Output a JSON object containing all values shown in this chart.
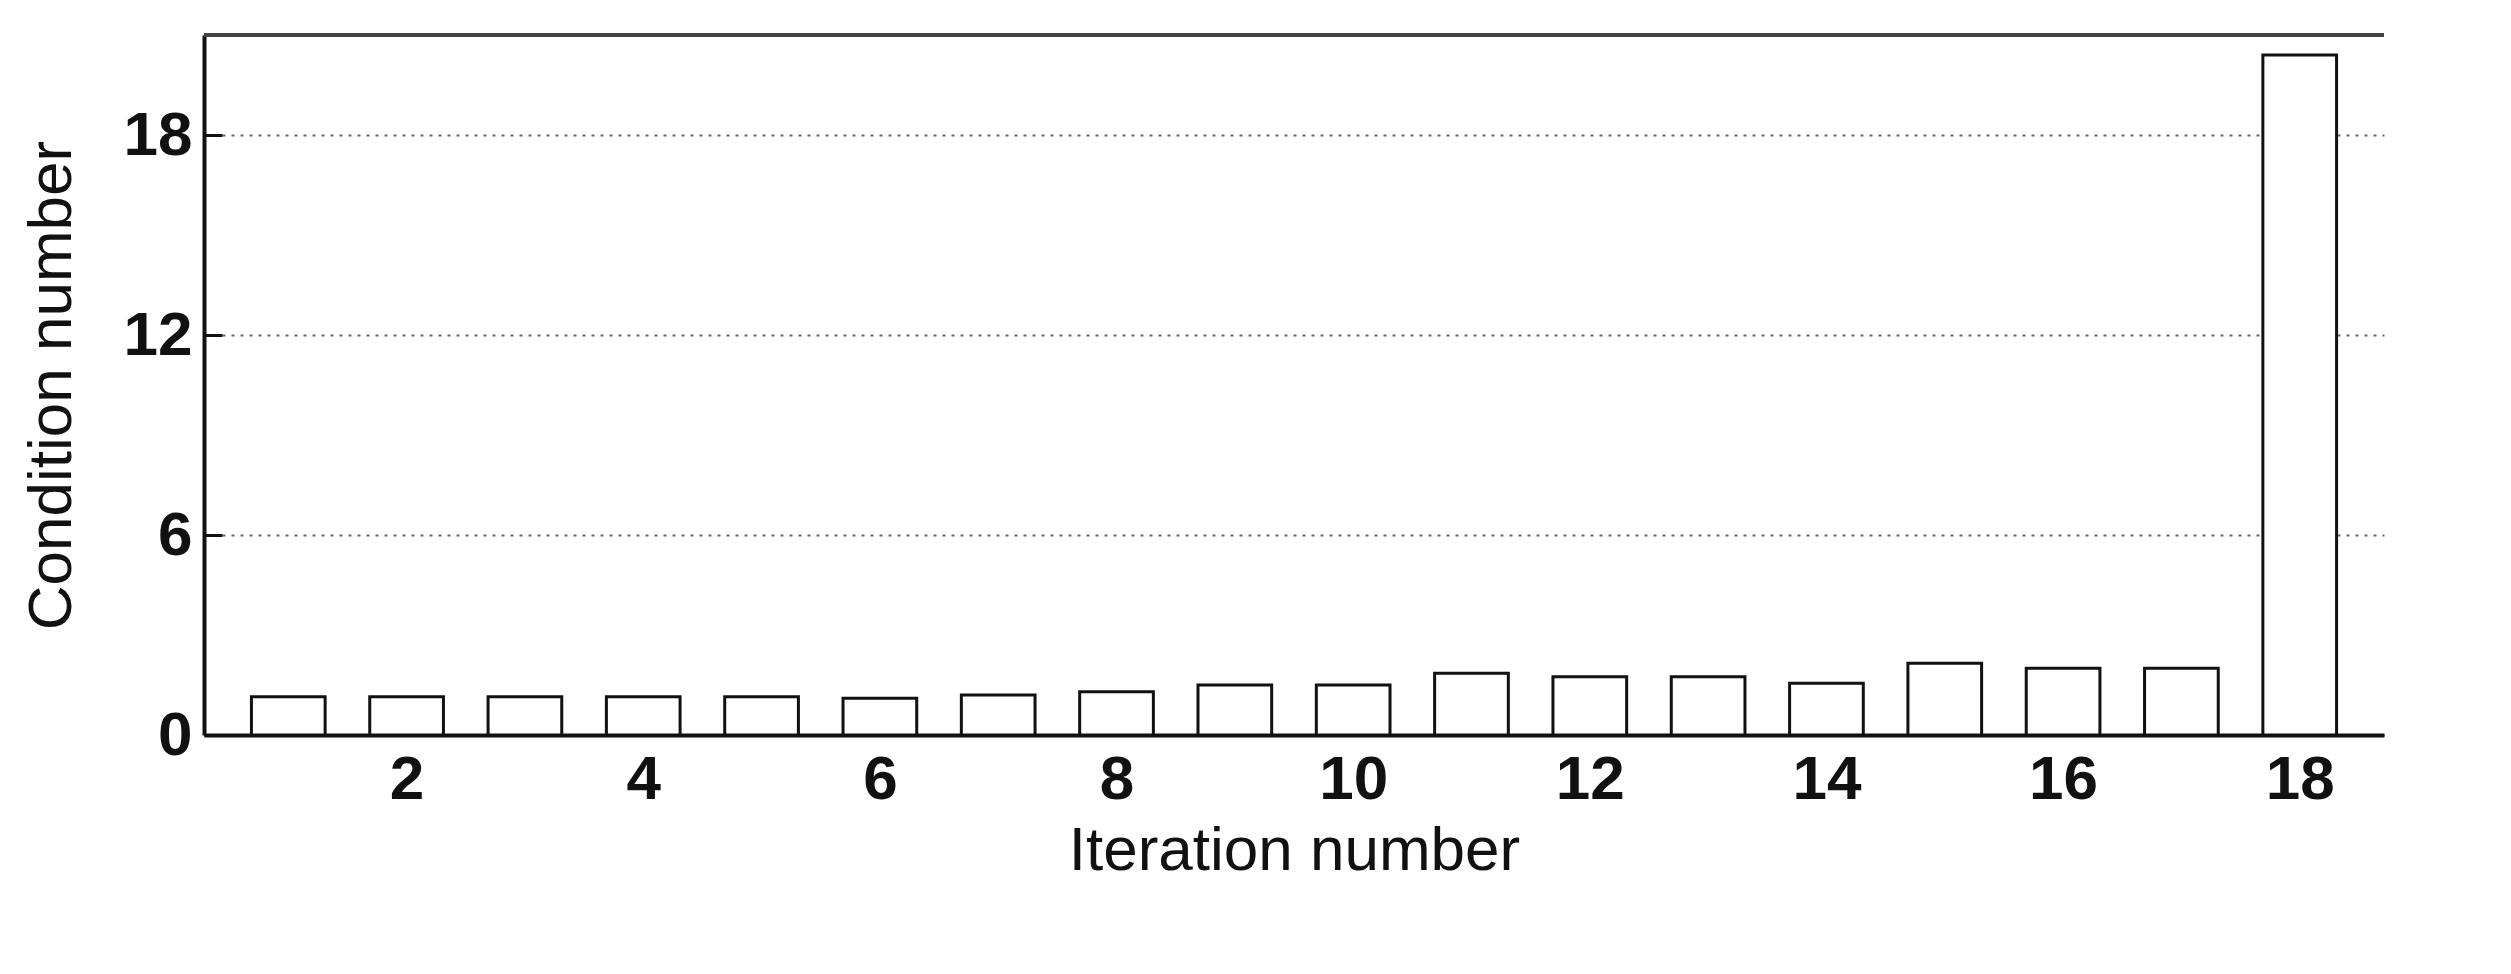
{
  "chart_data": {
    "type": "bar",
    "xlabel": "Iteration number",
    "ylabel": "Condition number",
    "x": [
      1,
      2,
      3,
      4,
      5,
      6,
      7,
      8,
      9,
      10,
      11,
      12,
      13,
      14,
      15,
      16,
      17,
      18
    ],
    "values": [
      1.15,
      1.15,
      1.15,
      1.15,
      1.15,
      1.1,
      1.2,
      1.3,
      1.5,
      1.5,
      1.85,
      1.75,
      1.75,
      1.55,
      2.15,
      2.0,
      2.0,
      20.4
    ],
    "color": "#ffffff",
    "xlim": [
      0.33,
      18.67
    ],
    "xticks": [
      2,
      4,
      6,
      8,
      10,
      12,
      14,
      16,
      18
    ],
    "ylim": [
      0,
      21
    ],
    "yticks": [
      0,
      6,
      12,
      18
    ],
    "grid": "y"
  }
}
